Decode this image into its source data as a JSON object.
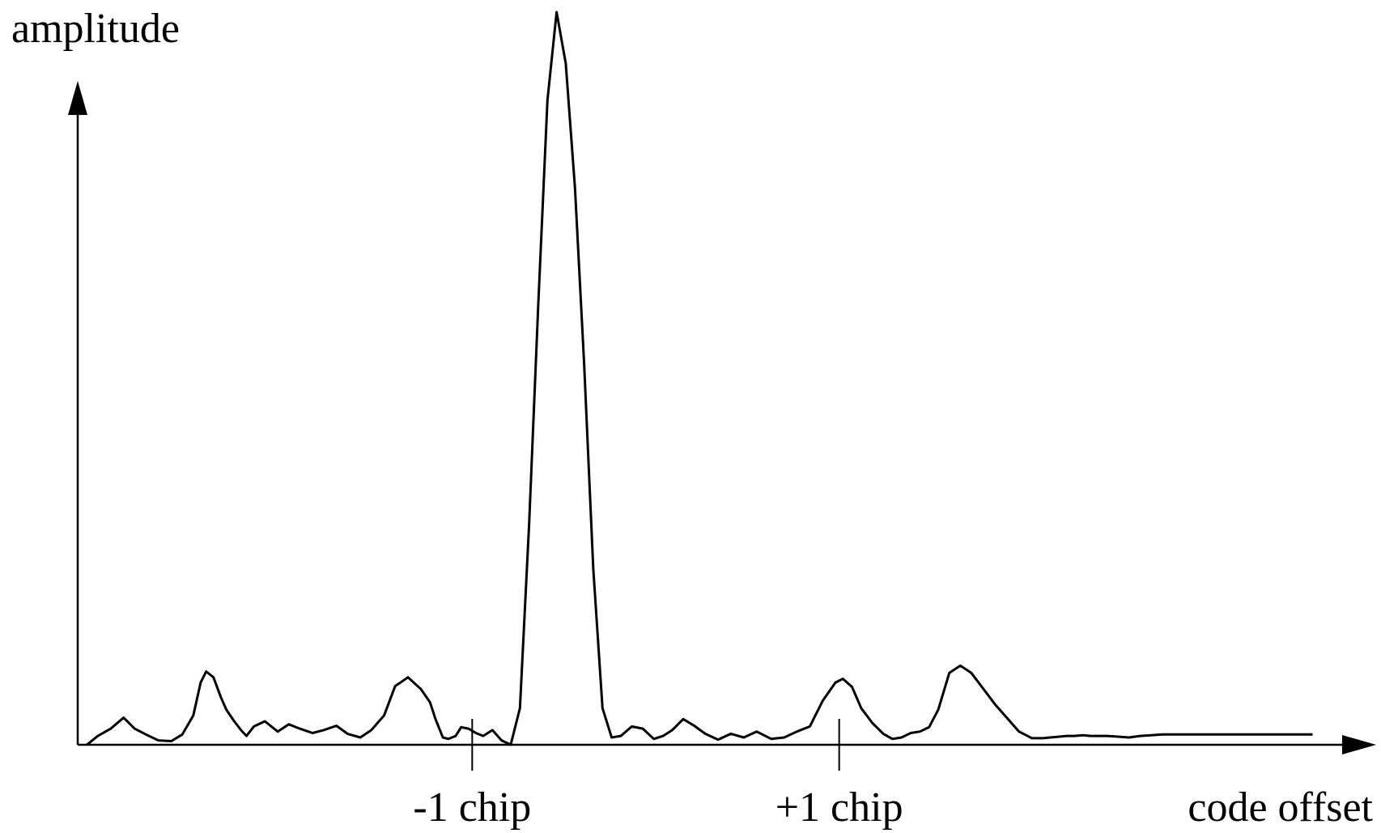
{
  "chart_data": {
    "type": "line",
    "ylabel": "amplitude",
    "xlabel": "code offset",
    "tick_labels": [
      "-1 chip",
      "+1 chip"
    ],
    "ticks": [
      -1,
      1
    ],
    "xlim": [
      -3.15,
      3.75
    ],
    "ylim": [
      0,
      1.0
    ],
    "grid": false,
    "color": "#000000",
    "series": [
      {
        "x": [
          -3.1,
          -3.04,
          -2.97,
          -2.9,
          -2.84,
          -2.77,
          -2.71,
          -2.64,
          -2.58,
          -2.52,
          -2.48,
          -2.45,
          -2.41,
          -2.37,
          -2.34,
          -2.3,
          -2.26,
          -2.23,
          -2.19,
          -2.13,
          -2.06,
          -2.0,
          -1.94,
          -1.87,
          -1.81,
          -1.74,
          -1.68,
          -1.61,
          -1.55,
          -1.48,
          -1.42,
          -1.35,
          -1.28,
          -1.23,
          -1.2,
          -1.16,
          -1.13,
          -1.09,
          -1.06,
          -1.02,
          -0.98,
          -0.94,
          -0.89,
          -0.84,
          -0.79,
          -0.74,
          -0.69,
          -0.64,
          -0.59,
          -0.54,
          -0.49,
          -0.44,
          -0.39,
          -0.34,
          -0.29,
          -0.24,
          -0.19,
          -0.13,
          -0.07,
          -0.01,
          0.04,
          0.09,
          0.15,
          0.21,
          0.27,
          0.34,
          0.41,
          0.48,
          0.55,
          0.63,
          0.7,
          0.77,
          0.84,
          0.91,
          0.98,
          1.02,
          1.07,
          1.12,
          1.18,
          1.24,
          1.29,
          1.34,
          1.39,
          1.44,
          1.49,
          1.54,
          1.6,
          1.66,
          1.72,
          1.79,
          1.85,
          1.92,
          1.98,
          2.05,
          2.11,
          2.15,
          2.2,
          2.24,
          2.28,
          2.33,
          2.37,
          2.42,
          2.46,
          2.52,
          2.58,
          2.64,
          2.7,
          2.76,
          2.82,
          2.86,
          2.88,
          2.91,
          2.95,
          3.02,
          3.09,
          3.15,
          3.22,
          3.28,
          3.33,
          3.38,
          3.43,
          3.47,
          3.52,
          3.58
        ],
        "y": [
          0.0,
          0.012,
          0.022,
          0.037,
          0.022,
          0.013,
          0.006,
          0.005,
          0.014,
          0.04,
          0.085,
          0.1,
          0.092,
          0.065,
          0.048,
          0.033,
          0.02,
          0.012,
          0.025,
          0.032,
          0.018,
          0.028,
          0.022,
          0.016,
          0.02,
          0.026,
          0.015,
          0.01,
          0.02,
          0.04,
          0.08,
          0.092,
          0.076,
          0.058,
          0.035,
          0.01,
          0.008,
          0.012,
          0.024,
          0.022,
          0.016,
          0.012,
          0.02,
          0.006,
          0.0,
          0.05,
          0.3,
          0.6,
          0.88,
          1.0,
          0.93,
          0.76,
          0.52,
          0.24,
          0.05,
          0.01,
          0.012,
          0.025,
          0.022,
          0.008,
          0.012,
          0.02,
          0.035,
          0.026,
          0.015,
          0.007,
          0.015,
          0.01,
          0.018,
          0.008,
          0.01,
          0.018,
          0.025,
          0.06,
          0.085,
          0.09,
          0.079,
          0.05,
          0.03,
          0.015,
          0.008,
          0.01,
          0.016,
          0.018,
          0.024,
          0.048,
          0.098,
          0.108,
          0.098,
          0.075,
          0.055,
          0.035,
          0.018,
          0.009,
          0.009,
          0.01,
          0.011,
          0.012,
          0.012,
          0.013,
          0.012,
          0.012,
          0.012,
          0.011,
          0.01,
          0.012,
          0.013,
          0.014,
          0.014,
          0.014,
          0.014,
          0.014,
          0.014,
          0.014,
          0.014,
          0.014,
          0.014,
          0.014,
          0.014,
          0.014,
          0.014,
          0.014,
          0.014,
          0.014
        ]
      }
    ]
  }
}
